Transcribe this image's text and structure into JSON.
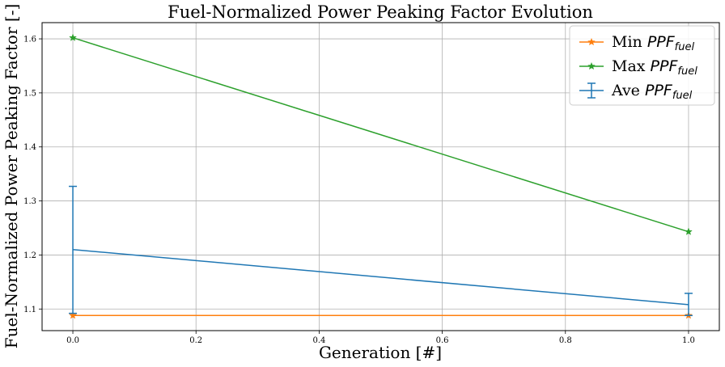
{
  "chart_data": {
    "type": "line",
    "title": "Fuel-Normalized Power Peaking Factor Evolution",
    "xlabel": "Generation [#]",
    "ylabel": "Fuel-Normalized Power Peaking Factor [-]",
    "xlim": [
      -0.05,
      1.05
    ],
    "ylim": [
      1.06,
      1.63
    ],
    "xticks": [
      "0.0",
      "0.2",
      "0.4",
      "0.6",
      "0.8",
      "1.0"
    ],
    "xtick_values": [
      0.0,
      0.2,
      0.4,
      0.6,
      0.8,
      1.0
    ],
    "yticks": [
      "1.1",
      "1.2",
      "1.3",
      "1.4",
      "1.5",
      "1.6"
    ],
    "ytick_values": [
      1.1,
      1.2,
      1.3,
      1.4,
      1.5,
      1.6
    ],
    "grid": true,
    "legend_position": "top-right",
    "x": [
      0.0,
      1.0
    ],
    "series": [
      {
        "name": "Min",
        "name_math": "PPF",
        "name_sub": "fuel",
        "color": "#ff7f0e",
        "marker": "star",
        "values": [
          1.088,
          1.088
        ]
      },
      {
        "name": "Max",
        "name_math": "PPF",
        "name_sub": "fuel",
        "color": "#2ca02c",
        "marker": "star",
        "values": [
          1.602,
          1.243
        ]
      },
      {
        "name": "Ave",
        "name_math": "PPF",
        "name_sub": "fuel",
        "color": "#1f77b4",
        "marker": "errorbar",
        "values": [
          1.21,
          1.108
        ],
        "err_low": [
          1.092,
          1.088
        ],
        "err_high": [
          1.327,
          1.129
        ]
      }
    ]
  }
}
